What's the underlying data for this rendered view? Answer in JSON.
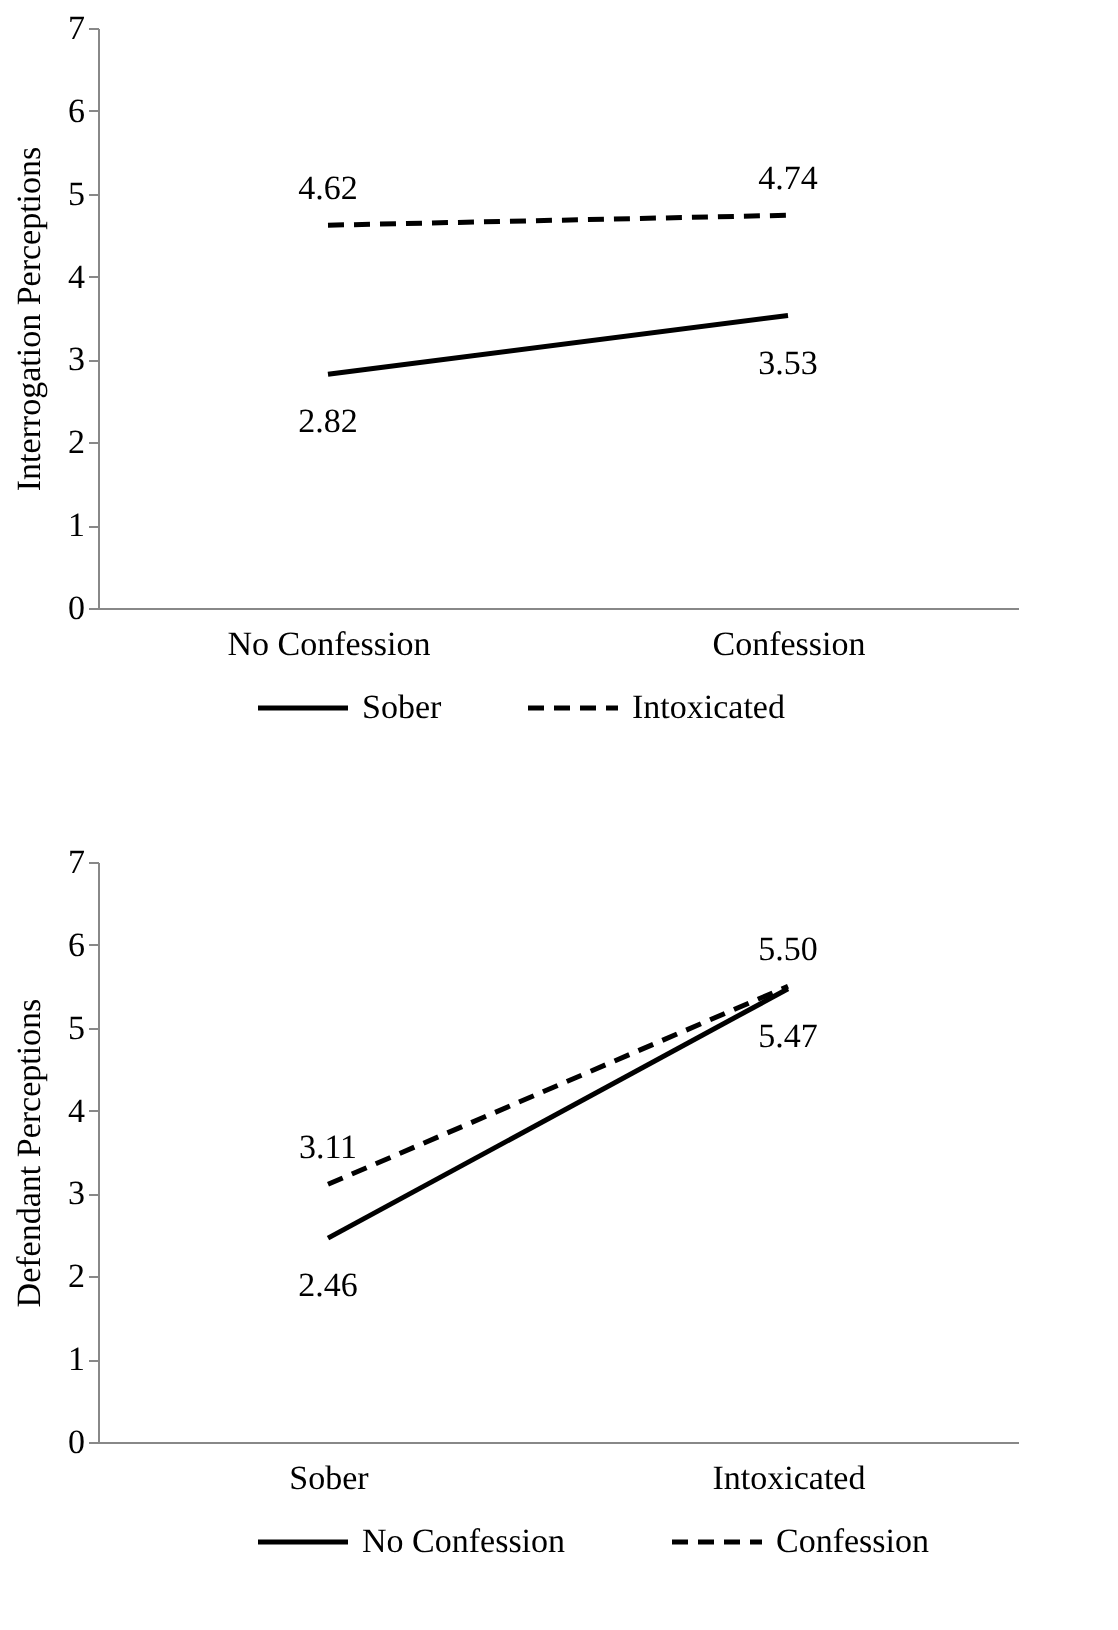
{
  "chart_data": [
    {
      "type": "line",
      "ylabel": "Interrogation Perceptions",
      "categories": [
        "No Confession",
        "Confession"
      ],
      "ylim": [
        0,
        7
      ],
      "yticks": [
        0,
        1,
        2,
        3,
        4,
        5,
        6,
        7
      ],
      "grid": false,
      "legend": "bottom",
      "marker": "none",
      "data_labels": true,
      "series": [
        {
          "name": "Sober",
          "color": "#000000",
          "line_style": "solid",
          "values": [
            2.82,
            3.53
          ]
        },
        {
          "name": "Intoxicated",
          "color": "#000000",
          "line_style": "dashed",
          "values": [
            4.62,
            4.74
          ]
        }
      ]
    },
    {
      "type": "line",
      "ylabel": "Defendant Perceptions",
      "categories": [
        "Sober",
        "Intoxicated"
      ],
      "ylim": [
        0,
        7
      ],
      "yticks": [
        0,
        1,
        2,
        3,
        4,
        5,
        6,
        7
      ],
      "grid": false,
      "legend": "bottom",
      "marker": "none",
      "series": [
        {
          "name": "No Confession",
          "color": "#000000",
          "line_style": "solid",
          "values": [
            2.46,
            5.47
          ],
          "value_labels": [
            "2.46",
            "5.47"
          ]
        },
        {
          "name": "Confession",
          "color": "#000000",
          "line_style": "dashed",
          "values": [
            3.11,
            5.5
          ],
          "value_labels": [
            "3.11",
            "5.50"
          ]
        }
      ]
    }
  ]
}
